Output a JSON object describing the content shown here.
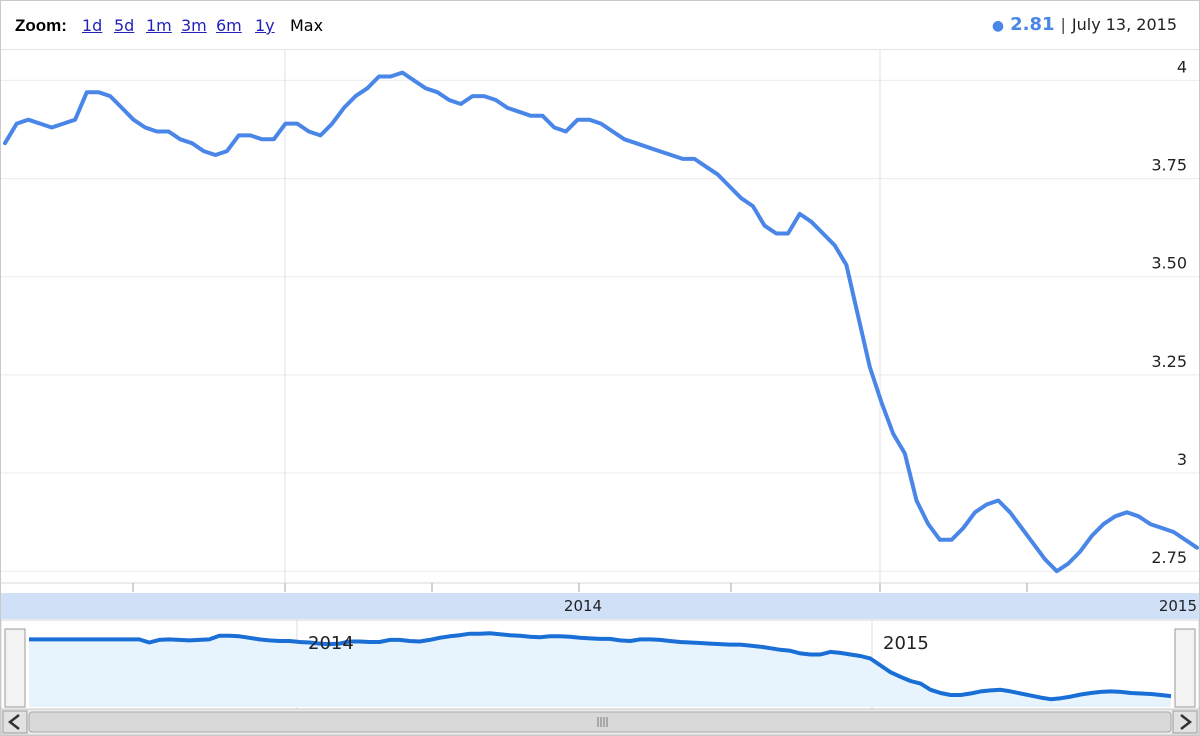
{
  "toolbar": {
    "zoom_label": "Zoom:",
    "zoom_options": [
      "1d",
      "5d",
      "1m",
      "3m",
      "6m",
      "1y",
      "Max"
    ],
    "selected_zoom": "Max"
  },
  "readout": {
    "value": "2.81",
    "separator": "|",
    "date": "July 13, 2015"
  },
  "colors": {
    "line": "#4a86e8",
    "navigator_line": "#1a6fd6",
    "navigator_fill": "#e8f4fd",
    "axis_band": "#cfe0f7"
  },
  "chart_data": {
    "type": "line",
    "y_ticks": [
      "4",
      "3.75",
      "3.50",
      "3.25",
      "3",
      "2.75"
    ],
    "y_tick_values": [
      4.0,
      3.75,
      3.5,
      3.25,
      3.0,
      2.75
    ],
    "ylim": [
      2.72,
      4.08
    ],
    "x_labels": [
      "2014",
      "2015"
    ],
    "grid": true,
    "series": [
      {
        "values": [
          3.84,
          3.89,
          3.9,
          3.89,
          3.88,
          3.89,
          3.9,
          3.97,
          3.97,
          3.96,
          3.93,
          3.9,
          3.88,
          3.87,
          3.87,
          3.85,
          3.84,
          3.82,
          3.81,
          3.82,
          3.86,
          3.86,
          3.85,
          3.85,
          3.89,
          3.89,
          3.87,
          3.86,
          3.89,
          3.93,
          3.96,
          3.98,
          4.01,
          4.01,
          4.02,
          4.0,
          3.98,
          3.97,
          3.95,
          3.94,
          3.96,
          3.96,
          3.95,
          3.93,
          3.92,
          3.91,
          3.91,
          3.88,
          3.87,
          3.9,
          3.9,
          3.89,
          3.87,
          3.85,
          3.84,
          3.83,
          3.82,
          3.81,
          3.8,
          3.8,
          3.78,
          3.76,
          3.73,
          3.7,
          3.68,
          3.63,
          3.61,
          3.61,
          3.66,
          3.64,
          3.61,
          3.58,
          3.53,
          3.4,
          3.27,
          3.18,
          3.1,
          3.05,
          2.93,
          2.87,
          2.83,
          2.83,
          2.86,
          2.9,
          2.92,
          2.93,
          2.9,
          2.86,
          2.82,
          2.78,
          2.75,
          2.77,
          2.8,
          2.84,
          2.87,
          2.89,
          2.9,
          2.89,
          2.87,
          2.86,
          2.85,
          2.83,
          2.81
        ]
      }
    ],
    "navigator": {
      "x_labels": [
        "2014",
        "2015"
      ]
    }
  }
}
